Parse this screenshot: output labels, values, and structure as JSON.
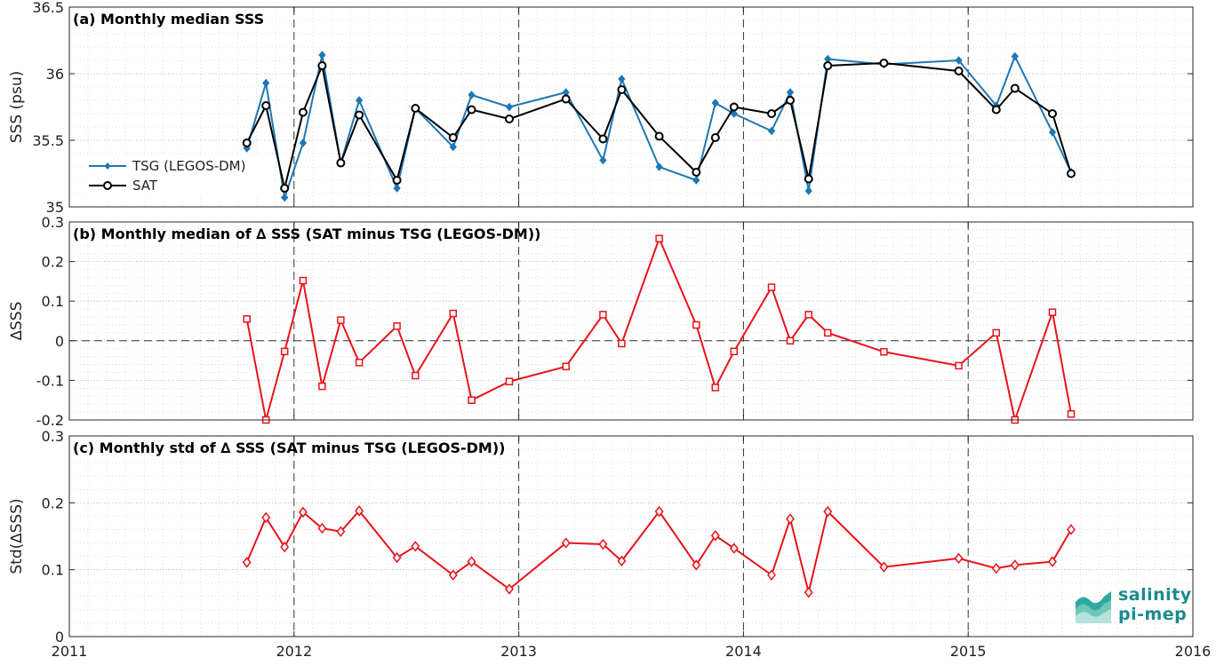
{
  "logo": {
    "line1": "salinity",
    "line2": "pi-mep"
  },
  "colors": {
    "tsg": "#1f77b4",
    "sat": "#000000",
    "delta": "#e8131a"
  },
  "chart_data": [
    {
      "type": "line",
      "title": "(a) Monthly median SSS",
      "ylabel": "SSS (psu)",
      "xlim": [
        2011,
        2016
      ],
      "ylim": [
        35,
        36.5
      ],
      "xticks": [
        2011,
        2012,
        2013,
        2014,
        2015,
        2016
      ],
      "yticks": [
        35,
        35.5,
        36,
        36.5
      ],
      "yticklabels": [
        "35",
        "35.5",
        "36",
        "36.5"
      ],
      "grid": true,
      "legend": "left",
      "series": [
        {
          "name": "TSG (LEGOS-DM)",
          "x": [
            2011.79,
            2011.875,
            2011.958,
            2012.04,
            2012.125,
            2012.208,
            2012.29,
            2012.458,
            2012.54,
            2012.708,
            2012.79,
            2012.958,
            2013.21,
            2013.375,
            2013.458,
            2013.625,
            2013.79,
            2013.875,
            2013.958,
            2014.125,
            2014.208,
            2014.29,
            2014.375,
            2014.625,
            2014.958,
            2015.125,
            2015.208,
            2015.375,
            2015.458
          ],
          "values": [
            35.44,
            35.93,
            35.07,
            35.48,
            36.14,
            35.33,
            35.8,
            35.14,
            35.74,
            35.45,
            35.84,
            35.75,
            35.86,
            35.35,
            35.96,
            35.3,
            35.2,
            35.78,
            35.7,
            35.57,
            35.86,
            35.12,
            36.11,
            36.07,
            36.1,
            35.76,
            36.13,
            35.56,
            35.26
          ]
        },
        {
          "name": "SAT",
          "x": [
            2011.79,
            2011.875,
            2011.958,
            2012.04,
            2012.125,
            2012.208,
            2012.29,
            2012.458,
            2012.54,
            2012.708,
            2012.79,
            2012.958,
            2013.21,
            2013.375,
            2013.458,
            2013.625,
            2013.79,
            2013.875,
            2013.958,
            2014.125,
            2014.208,
            2014.29,
            2014.375,
            2014.625,
            2014.958,
            2015.125,
            2015.208,
            2015.375,
            2015.458
          ],
          "values": [
            35.48,
            35.76,
            35.14,
            35.71,
            36.06,
            35.33,
            35.69,
            35.2,
            35.74,
            35.52,
            35.73,
            35.66,
            35.81,
            35.51,
            35.88,
            35.53,
            35.26,
            35.52,
            35.75,
            35.7,
            35.8,
            35.21,
            36.06,
            36.08,
            36.02,
            35.73,
            35.89,
            35.7,
            35.25
          ]
        }
      ]
    },
    {
      "type": "line",
      "title": "(b) Monthly median of ∆ SSS (SAT minus TSG (LEGOS-DM))",
      "ylabel": "∆SSS",
      "xlim": [
        2011,
        2016
      ],
      "ylim": [
        -0.2,
        0.3
      ],
      "xticks": [
        2011,
        2012,
        2013,
        2014,
        2015,
        2016
      ],
      "yticks": [
        -0.2,
        -0.1,
        0,
        0.1,
        0.2,
        0.3
      ],
      "yticklabels": [
        "-0.2",
        "-0.1",
        "0",
        "0.1",
        "0.2",
        "0.3"
      ],
      "grid": true,
      "series": [
        {
          "x": [
            2011.79,
            2011.875,
            2011.958,
            2012.04,
            2012.125,
            2012.208,
            2012.29,
            2012.458,
            2012.54,
            2012.708,
            2012.79,
            2012.958,
            2013.21,
            2013.375,
            2013.458,
            2013.625,
            2013.79,
            2013.875,
            2013.958,
            2014.125,
            2014.208,
            2014.29,
            2014.375,
            2014.625,
            2014.958,
            2015.125,
            2015.208,
            2015.375,
            2015.458
          ],
          "values": [
            0.055,
            -0.2,
            -0.027,
            0.152,
            -0.115,
            0.052,
            -0.055,
            0.037,
            -0.088,
            0.069,
            -0.15,
            -0.103,
            -0.065,
            0.066,
            -0.007,
            0.258,
            0.04,
            -0.118,
            -0.027,
            0.135,
            0.0,
            0.066,
            0.02,
            -0.028,
            -0.063,
            0.02,
            -0.2,
            0.072,
            -0.185
          ]
        }
      ]
    },
    {
      "type": "line",
      "title": "(c) Monthly std of ∆ SSS (SAT minus TSG (LEGOS-DM))",
      "ylabel": "Std(∆SSS)",
      "xlim": [
        2011,
        2016
      ],
      "ylim": [
        0,
        0.3
      ],
      "xticks": [
        2011,
        2012,
        2013,
        2014,
        2015,
        2016
      ],
      "xticklabels": [
        "2011",
        "2012",
        "2013",
        "2014",
        "2015",
        "2016"
      ],
      "yticks": [
        0,
        0.1,
        0.2,
        0.3
      ],
      "yticklabels": [
        "0",
        "0.1",
        "0.2",
        "0.3"
      ],
      "grid": true,
      "series": [
        {
          "x": [
            2011.79,
            2011.875,
            2011.958,
            2012.04,
            2012.125,
            2012.208,
            2012.29,
            2012.458,
            2012.54,
            2012.708,
            2012.79,
            2012.958,
            2013.21,
            2013.375,
            2013.458,
            2013.625,
            2013.79,
            2013.875,
            2013.958,
            2014.125,
            2014.208,
            2014.29,
            2014.375,
            2014.625,
            2014.958,
            2015.125,
            2015.208,
            2015.375,
            2015.458
          ],
          "values": [
            0.111,
            0.178,
            0.134,
            0.186,
            0.162,
            0.157,
            0.188,
            0.118,
            0.135,
            0.092,
            0.112,
            0.071,
            0.14,
            0.138,
            0.113,
            0.187,
            0.107,
            0.151,
            0.132,
            0.092,
            0.176,
            0.066,
            0.187,
            0.104,
            0.117,
            0.102,
            0.107,
            0.112,
            0.16
          ]
        }
      ]
    }
  ]
}
